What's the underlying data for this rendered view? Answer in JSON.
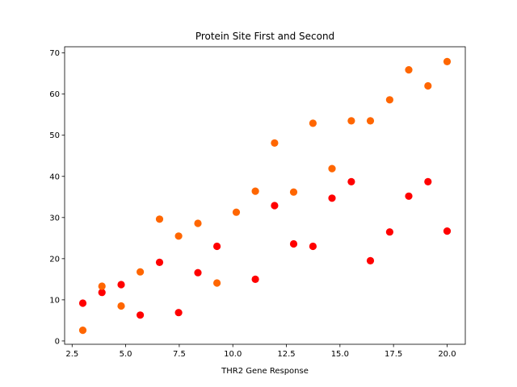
{
  "chart_data": {
    "type": "scatter",
    "title": "Protein Site First and Second",
    "xlabel": "THR2 Gene Response",
    "ylabel": "",
    "xlim": [
      2.15,
      20.85
    ],
    "ylim": [
      -0.8,
      71.5
    ],
    "xticks": [
      2.5,
      5.0,
      7.5,
      10.0,
      12.5,
      15.0,
      17.5,
      20.0
    ],
    "xtick_labels": [
      "2.5",
      "5.0",
      "7.5",
      "10.0",
      "12.5",
      "15.0",
      "17.5",
      "20.0"
    ],
    "yticks": [
      0,
      10,
      20,
      30,
      40,
      50,
      60,
      70
    ],
    "ytick_labels": [
      "0",
      "10",
      "20",
      "30",
      "40",
      "50",
      "60",
      "70"
    ],
    "grid": false,
    "legend": "none",
    "series": [
      {
        "color": "#ff0000",
        "x": [
          3.0,
          3.89,
          4.79,
          5.68,
          6.58,
          7.47,
          8.37,
          9.26,
          11.05,
          11.95,
          12.84,
          13.74,
          14.63,
          15.53,
          16.42,
          17.32,
          18.21,
          19.11,
          20.0
        ],
        "y": [
          9.2,
          11.8,
          13.7,
          6.3,
          19.1,
          6.9,
          16.6,
          23.0,
          15.0,
          32.9,
          23.6,
          23.0,
          34.7,
          38.7,
          19.5,
          26.5,
          35.2,
          38.7,
          26.7
        ]
      },
      {
        "color": "#ff6600",
        "x": [
          3.0,
          3.89,
          4.79,
          5.68,
          6.58,
          7.47,
          8.37,
          9.26,
          10.16,
          11.05,
          11.95,
          12.84,
          13.74,
          14.63,
          15.53,
          16.42,
          17.32,
          18.21,
          19.11,
          20.0
        ],
        "y": [
          2.6,
          13.3,
          8.5,
          16.8,
          29.6,
          25.5,
          28.6,
          14.1,
          31.3,
          36.4,
          48.1,
          36.2,
          52.9,
          41.9,
          53.5,
          53.5,
          58.6,
          65.9,
          62.0,
          67.9
        ]
      }
    ]
  }
}
